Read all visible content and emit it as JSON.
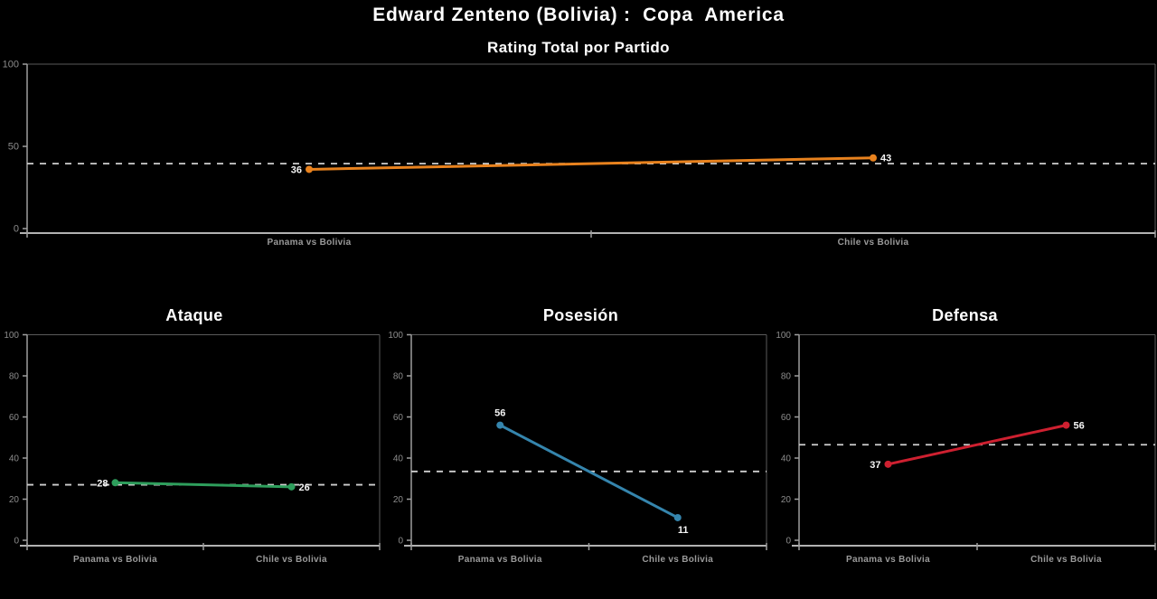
{
  "header": {
    "title": "Edward Zenteno (Bolivia) :  Copa  America"
  },
  "colors": {
    "background": "#000000",
    "title_text": "#FFFFFF",
    "value_label": "#F5F5F5",
    "tick_label": "#8C8C8C",
    "category_label": "#9A9A9A",
    "axis_line": "#B2B2B2",
    "axis_minor": "#9E9E9E",
    "plot_border": "#5A5A5A",
    "mean_line": "#CFCFCF"
  },
  "chart_data": [
    {
      "type": "line",
      "title": "Rating Total por Partido",
      "categories": [
        "Panama vs Bolivia",
        "Chile vs Bolivia"
      ],
      "values": [
        36,
        43
      ],
      "mean_line": 39.5,
      "color": "#E8821E",
      "ylim": [
        0,
        100
      ],
      "yticks": [
        0,
        50,
        100
      ],
      "grid": "off",
      "legend": "none",
      "label_positions": [
        "left",
        "right"
      ]
    },
    {
      "type": "line",
      "title": "Ataque",
      "categories": [
        "Panama vs Bolivia",
        "Chile vs Bolivia"
      ],
      "values": [
        28,
        26
      ],
      "mean_line": 27,
      "color": "#2E9E5C",
      "ylim": [
        0,
        100
      ],
      "yticks": [
        0,
        20,
        40,
        60,
        80,
        100
      ],
      "grid": "off",
      "legend": "none",
      "label_positions": [
        "left",
        "right"
      ]
    },
    {
      "type": "line",
      "title": "Posesión",
      "categories": [
        "Panama vs Bolivia",
        "Chile vs Bolivia"
      ],
      "values": [
        56,
        11
      ],
      "mean_line": 33.5,
      "color": "#3585AD",
      "ylim": [
        0,
        100
      ],
      "yticks": [
        0,
        20,
        40,
        60,
        80,
        100
      ],
      "grid": "off",
      "legend": "none",
      "label_positions": [
        "top",
        "bottom"
      ]
    },
    {
      "type": "line",
      "title": "Defensa",
      "categories": [
        "Panama vs Bolivia",
        "Chile vs Bolivia"
      ],
      "values": [
        37,
        56
      ],
      "mean_line": 46.5,
      "color": "#CE2030",
      "ylim": [
        0,
        100
      ],
      "yticks": [
        0,
        20,
        40,
        60,
        80,
        100
      ],
      "grid": "off",
      "legend": "none",
      "label_positions": [
        "left",
        "right"
      ]
    }
  ]
}
